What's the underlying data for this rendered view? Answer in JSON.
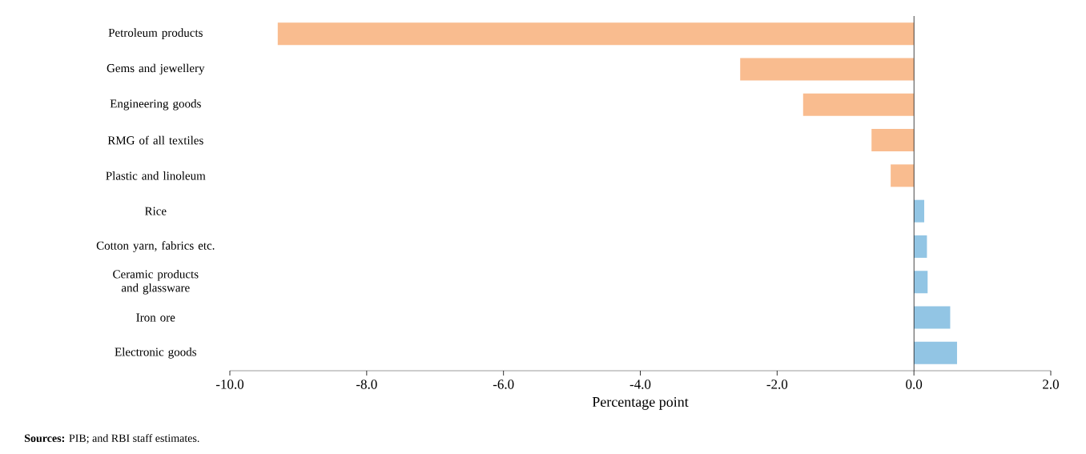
{
  "chart_data": {
    "type": "bar",
    "orientation": "horizontal",
    "categories": [
      "Petroleum products",
      "Gems and jewellery",
      "Engineering goods",
      "RMG of all textiles",
      "Plastic and linoleum",
      "Rice",
      "Cotton yarn, fabrics etc.",
      "Ceramic products and glassware",
      "Iron ore",
      "Electronic goods"
    ],
    "values": [
      -9.3,
      -2.54,
      -1.62,
      -0.62,
      -0.34,
      0.15,
      0.19,
      0.2,
      0.53,
      0.63
    ],
    "colors": [
      "#f9bc8f",
      "#f9bc8f",
      "#f9bc8f",
      "#f9bc8f",
      "#f9bc8f",
      "#92c5e4",
      "#92c5e4",
      "#92c5e4",
      "#92c5e4",
      "#92c5e4"
    ],
    "xlabel": "Percentage point",
    "xlim": [
      -10,
      2
    ],
    "xticks": [
      {
        "value": -10,
        "label": "-10.0"
      },
      {
        "value": -8,
        "label": "-8.0"
      },
      {
        "value": -6,
        "label": "-6.0"
      },
      {
        "value": -4,
        "label": "-4.0"
      },
      {
        "value": -2,
        "label": "-2.0"
      },
      {
        "value": 0,
        "label": "0.0"
      },
      {
        "value": 2,
        "label": "2.0"
      }
    ],
    "annotations": [
      "**Sources:** PIB; and RBI staff estimates."
    ]
  }
}
